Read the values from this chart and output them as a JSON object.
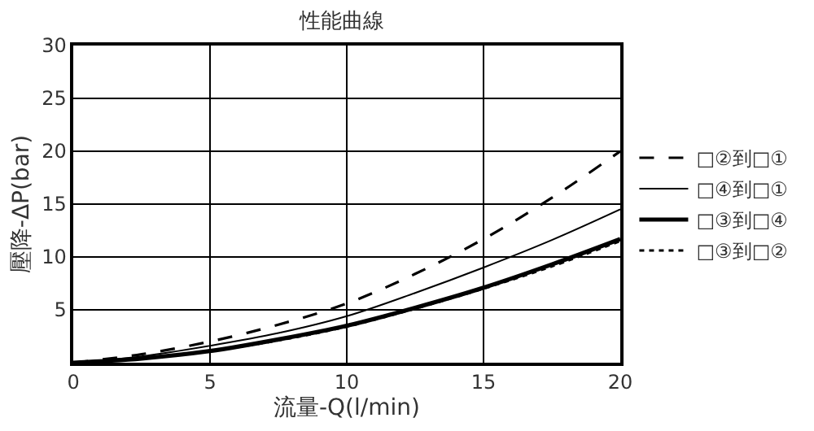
{
  "chart_data": {
    "type": "line",
    "title": "性能曲線",
    "xlabel": "流量-Q(l/min)",
    "ylabel": "壓降-ΔP(bar)",
    "x": [
      0,
      2.5,
      5,
      7.5,
      10,
      12.5,
      15,
      17.5,
      20
    ],
    "series": [
      {
        "name": "□②到□①",
        "color": "#000000",
        "line_style": "dashed",
        "values": [
          0,
          0.8,
          2,
          3.6,
          5.6,
          8.4,
          11.7,
          15.6,
          20
        ]
      },
      {
        "name": "□④到□①",
        "color": "#000000",
        "line_style": "solid",
        "values": [
          0,
          0.6,
          1.6,
          2.8,
          4.4,
          6.6,
          9,
          11.6,
          14.5
        ]
      },
      {
        "name": "□③到□④",
        "color": "#000000",
        "line_style": "solid",
        "values": [
          0,
          0.4,
          1.1,
          2.2,
          3.5,
          5.2,
          7.1,
          9.3,
          11.7
        ]
      },
      {
        "name": "□③到□②",
        "color": "#000000",
        "line_style": "dotted",
        "values": [
          0,
          0.4,
          1.1,
          2.1,
          3.4,
          5.1,
          7.0,
          9.1,
          11.5
        ]
      }
    ],
    "xlim": [
      0,
      20
    ],
    "xticks": [
      0,
      5,
      10,
      15,
      20
    ],
    "ylim": [
      0,
      30
    ],
    "yticks": [
      5,
      10,
      15,
      20,
      25,
      30
    ],
    "grid": true,
    "legend": "right",
    "marker": "none"
  }
}
